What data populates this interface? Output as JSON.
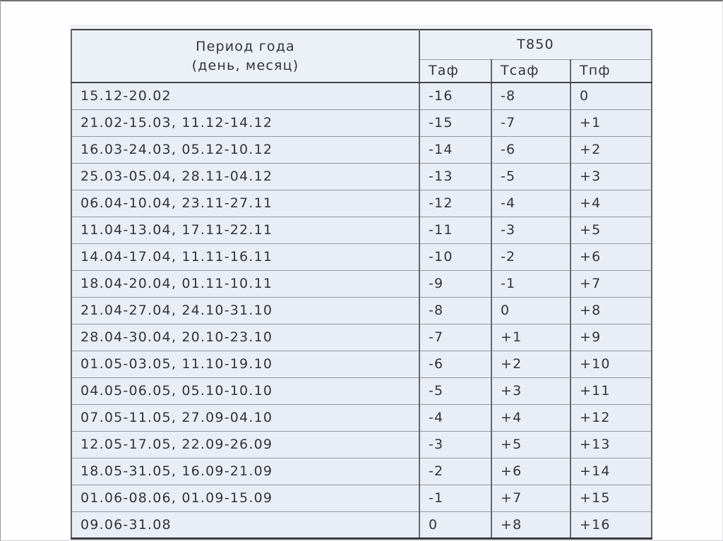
{
  "table": {
    "header": {
      "period_line1": "Период года",
      "period_line2": "(день, месяц)",
      "group": "Т850",
      "subcols": [
        "Таф",
        "Тсаф",
        "Тпф"
      ]
    },
    "rows": [
      {
        "period": "15.12-20.02",
        "taf": "-16",
        "tsaf": "-8",
        "tpf": "0"
      },
      {
        "period": "21.02-15.03, 11.12-14.12",
        "taf": "-15",
        "tsaf": "-7",
        "tpf": "+1"
      },
      {
        "period": "16.03-24.03, 05.12-10.12",
        "taf": "-14",
        "tsaf": "-6",
        "tpf": "+2"
      },
      {
        "period": "25.03-05.04, 28.11-04.12",
        "taf": "-13",
        "tsaf": "-5",
        "tpf": "+3"
      },
      {
        "period": "06.04-10.04, 23.11-27.11",
        "taf": "-12",
        "tsaf": "-4",
        "tpf": "+4"
      },
      {
        "period": "11.04-13.04, 17.11-22.11",
        "taf": "-11",
        "tsaf": "-3",
        "tpf": "+5"
      },
      {
        "period": "14.04-17.04, 11.11-16.11",
        "taf": "-10",
        "tsaf": "-2",
        "tpf": "+6"
      },
      {
        "period": "18.04-20.04, 01.11-10.11",
        "taf": "-9",
        "tsaf": "-1",
        "tpf": "+7"
      },
      {
        "period": "21.04-27.04, 24.10-31.10",
        "taf": "-8",
        "tsaf": "0",
        "tpf": "+8"
      },
      {
        "period": "28.04-30.04, 20.10-23.10",
        "taf": "-7",
        "tsaf": "+1",
        "tpf": "+9"
      },
      {
        "period": "01.05-03.05, 11.10-19.10",
        "taf": "-6",
        "tsaf": "+2",
        "tpf": "+10"
      },
      {
        "period": "04.05-06.05, 05.10-10.10",
        "taf": "-5",
        "tsaf": "+3",
        "tpf": "+11"
      },
      {
        "period": "07.05-11.05, 27.09-04.10",
        "taf": "-4",
        "tsaf": "+4",
        "tpf": "+12"
      },
      {
        "period": "12.05-17.05, 22.09-26.09",
        "taf": "-3",
        "tsaf": "+5",
        "tpf": "+13"
      },
      {
        "period": "18.05-31.05, 16.09-21.09",
        "taf": "-2",
        "tsaf": "+6",
        "tpf": "+14"
      },
      {
        "period": "01.06-08.06, 01.09-15.09",
        "taf": "-1",
        "tsaf": "+7",
        "tpf": "+15"
      },
      {
        "period": "09.06-31.08",
        "taf": "0",
        "tsaf": "+8",
        "tpf": "+16"
      }
    ]
  },
  "colors": {
    "cell_background": "#e9eef6",
    "header_background": "#ecf1f8",
    "grid_line_horizontal": "#97979d",
    "grid_line_vertical": "#66666d",
    "outer_border_dark": "#3a3a40",
    "text": "#333336",
    "page_background": "#fefefe"
  }
}
